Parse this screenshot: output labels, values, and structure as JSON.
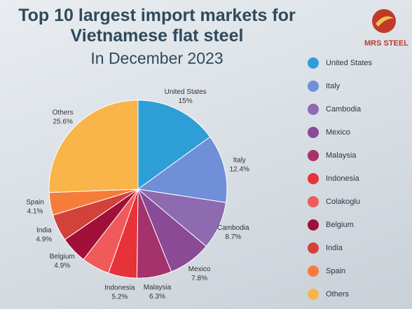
{
  "brand": "MRS STEEL",
  "chart_data": {
    "type": "pie",
    "title": "Top 10 largest import markets for Vietnamese flat steel",
    "subtitle": "In December 2023",
    "categories": [
      "United States",
      "Italy",
      "Cambodia",
      "Mexico",
      "Malaysia",
      "Indonesia",
      "Colakoglu",
      "Belgium",
      "India",
      "Spain",
      "Others"
    ],
    "values": [
      15,
      12.4,
      8.7,
      7.8,
      6.3,
      5.2,
      5.1,
      4.9,
      4.9,
      4.1,
      25.6
    ],
    "value_labels": [
      "15%",
      "12.4%",
      "8.7%",
      "7.8%",
      "6.3%",
      "5.2%",
      null,
      "4.9%",
      "4.9%",
      "4.1%",
      "25.6%"
    ],
    "colors": [
      "#2e9fd6",
      "#6f8fd8",
      "#8e6bb0",
      "#8a4a96",
      "#a3336a",
      "#e8323a",
      "#f05a5a",
      "#a0103a",
      "#d2413a",
      "#f57c3a",
      "#f9b44a"
    ],
    "legend": "right"
  }
}
